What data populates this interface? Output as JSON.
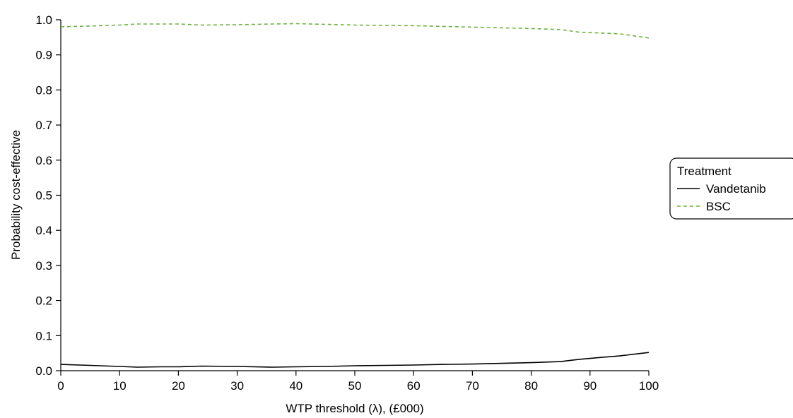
{
  "chart_data": {
    "type": "line",
    "title": "",
    "xlabel": "WTP threshold (λ), (£000)",
    "ylabel": "Probability cost-effective",
    "xlim": [
      0,
      100
    ],
    "ylim": [
      0,
      1
    ],
    "xticks": [
      0,
      10,
      20,
      30,
      40,
      50,
      60,
      70,
      80,
      90,
      100
    ],
    "xtick_labels": [
      "0",
      "10",
      "20",
      "30",
      "40",
      "50",
      "60",
      "70",
      "80",
      "90",
      "100"
    ],
    "yticks": [
      0,
      0.1,
      0.2,
      0.3,
      0.4,
      0.5,
      0.6,
      0.7,
      0.8,
      0.9,
      1.0
    ],
    "ytick_labels": [
      "0.0",
      "0.1",
      "0.2",
      "0.3",
      "0.4",
      "0.5",
      "0.6",
      "0.7",
      "0.8",
      "0.9",
      "1.0"
    ],
    "grid": false,
    "legend": {
      "title": "Treatment",
      "placement": "right",
      "entries": [
        "Vandetanib",
        "BSC"
      ]
    },
    "x": [
      0,
      5,
      10,
      13,
      17,
      20,
      24,
      30,
      36,
      40,
      45,
      50,
      55,
      60,
      65,
      70,
      75,
      80,
      85,
      88,
      92,
      95,
      100
    ],
    "series": [
      {
        "name": "Vandetanib",
        "color": "#000000",
        "dash": "solid",
        "values": [
          0.018,
          0.015,
          0.012,
          0.01,
          0.011,
          0.011,
          0.013,
          0.012,
          0.01,
          0.011,
          0.012,
          0.014,
          0.015,
          0.016,
          0.018,
          0.019,
          0.021,
          0.023,
          0.026,
          0.032,
          0.038,
          0.042,
          0.052
        ]
      },
      {
        "name": "BSC",
        "color": "#6db33f",
        "dash": "dashed",
        "values": [
          0.98,
          0.982,
          0.985,
          0.988,
          0.988,
          0.988,
          0.985,
          0.986,
          0.988,
          0.989,
          0.987,
          0.985,
          0.984,
          0.983,
          0.981,
          0.979,
          0.977,
          0.975,
          0.972,
          0.965,
          0.962,
          0.96,
          0.948
        ]
      }
    ]
  }
}
